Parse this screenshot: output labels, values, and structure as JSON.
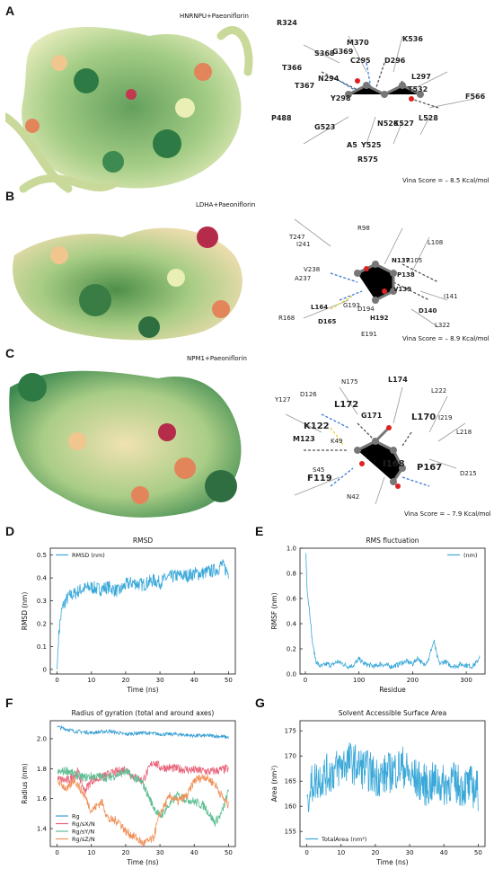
{
  "panels": {
    "A": {
      "letter": "A",
      "complex": "HNRNPU+Paeoniflorin",
      "vina": "Vina Score = – 8.5 Kcal/mol",
      "residues": [
        "R324",
        "M370",
        "K536",
        "G369",
        "S368",
        "C295",
        "D296",
        "T366",
        "N294",
        "L297",
        "T367",
        "T532",
        "Y298",
        "F566",
        "P488",
        "L528",
        "G523",
        "N526",
        "K527",
        "A5",
        "Y525",
        "R575"
      ]
    },
    "B": {
      "letter": "B",
      "complex": "LDHA+Paeoniflorin",
      "vina": "Vina Score = – 8.9 Kcal/mol",
      "residues": [
        "R98",
        "T247",
        "I241",
        "L108",
        "N137",
        "R105",
        "V238",
        "P138",
        "A237",
        "V139",
        "I141",
        "L164",
        "D140",
        "G193",
        "D194",
        "R168",
        "D165",
        "H192",
        "L322",
        "E191"
      ]
    },
    "C": {
      "letter": "C",
      "complex": "NPM1+Paeoniflorin",
      "vina": "Vina Score = – 7.9 Kcal/mol",
      "residues": [
        "N175",
        "L174",
        "L222",
        "D126",
        "Y127",
        "L172",
        "G171",
        "L170",
        "I219",
        "K122",
        "L218",
        "M123",
        "K49",
        "S45",
        "I168",
        "P167",
        "F119",
        "D215",
        "N42"
      ]
    }
  },
  "charts": {
    "D": {
      "letter": "D"
    },
    "E": {
      "letter": "E"
    },
    "F": {
      "letter": "F"
    },
    "G": {
      "letter": "G"
    }
  },
  "colors": {
    "series_blue": "#3aa8d8",
    "series_red": "#e8627a",
    "series_green": "#5fbf94",
    "series_orange": "#f0915a",
    "top_series": "#3a9fd4"
  },
  "chart_data": [
    {
      "id": "D",
      "type": "line",
      "title": "RMSD",
      "xlabel": "Time (ns)",
      "ylabel": "RMSD (nm)",
      "xlim": [
        -2,
        52
      ],
      "ylim": [
        -0.02,
        0.53
      ],
      "xticks": [
        0,
        10,
        20,
        30,
        40,
        50
      ],
      "yticks": [
        0,
        0.1,
        0.2,
        0.3,
        0.4,
        0.5
      ],
      "ytick_labels": [
        "0",
        "0.1",
        "0.2",
        "0.3",
        "0.4",
        "0.5"
      ],
      "legend": "top-left",
      "series": [
        {
          "name": "RMSD (nm)",
          "color": "#3aa8d8",
          "noise": 0.03,
          "x": [
            0,
            0.3,
            0.8,
            1.5,
            2.5,
            3.5,
            5,
            7,
            10,
            12,
            15,
            18,
            20,
            22,
            25,
            28,
            30,
            32,
            35,
            38,
            40,
            42,
            45,
            47,
            48,
            50
          ],
          "y": [
            0.0,
            0.12,
            0.2,
            0.27,
            0.3,
            0.32,
            0.33,
            0.35,
            0.36,
            0.35,
            0.36,
            0.34,
            0.37,
            0.38,
            0.37,
            0.39,
            0.38,
            0.4,
            0.41,
            0.41,
            0.42,
            0.42,
            0.43,
            0.44,
            0.46,
            0.42
          ]
        }
      ]
    },
    {
      "id": "E",
      "type": "line",
      "title": "RMS fluctuation",
      "xlabel": "Residue",
      "ylabel": "RMSF (nm)",
      "xlim": [
        -10,
        335
      ],
      "ylim": [
        0,
        1.0
      ],
      "xticks": [
        0,
        100,
        200,
        300
      ],
      "yticks": [
        0,
        0.2,
        0.4,
        0.6,
        0.8,
        1.0
      ],
      "ytick_labels": [
        "0.0",
        "0.2",
        "0.4",
        "0.6",
        "0.8",
        "1.0"
      ],
      "legend": "top-right",
      "series": [
        {
          "name": "(nm)",
          "color": "#3aa8d8",
          "noise": 0.02,
          "x": [
            1,
            3,
            5,
            8,
            10,
            12,
            15,
            18,
            20,
            25,
            30,
            40,
            50,
            60,
            70,
            80,
            90,
            100,
            110,
            120,
            130,
            140,
            150,
            160,
            170,
            180,
            190,
            200,
            210,
            220,
            230,
            235,
            240,
            245,
            250,
            260,
            270,
            280,
            290,
            300,
            310,
            320,
            325
          ],
          "y": [
            0.96,
            0.7,
            0.6,
            0.5,
            0.4,
            0.3,
            0.2,
            0.14,
            0.1,
            0.07,
            0.06,
            0.08,
            0.07,
            0.1,
            0.08,
            0.06,
            0.07,
            0.12,
            0.08,
            0.07,
            0.06,
            0.08,
            0.07,
            0.06,
            0.07,
            0.09,
            0.1,
            0.08,
            0.13,
            0.07,
            0.12,
            0.2,
            0.26,
            0.15,
            0.08,
            0.1,
            0.07,
            0.06,
            0.08,
            0.07,
            0.06,
            0.09,
            0.15
          ]
        }
      ]
    },
    {
      "id": "F",
      "type": "line",
      "title": "Radius of gyration (total and around axes)",
      "xlabel": "Time (ns)",
      "ylabel": "Radius (nm)",
      "xlim": [
        -2,
        52
      ],
      "ylim": [
        1.28,
        2.12
      ],
      "xticks": [
        0,
        10,
        20,
        30,
        40,
        50
      ],
      "yticks": [
        1.4,
        1.6,
        1.8,
        2.0
      ],
      "ytick_labels": [
        "1.4",
        "1.6",
        "1.8",
        "2.0"
      ],
      "legend": "bottom-left",
      "series": [
        {
          "name": "Rg",
          "color": "#3a9fd4",
          "noise": 0.012,
          "x": [
            0,
            5,
            10,
            15,
            20,
            25,
            30,
            35,
            40,
            45,
            50
          ],
          "y": [
            2.08,
            2.05,
            2.04,
            2.05,
            2.03,
            2.04,
            2.03,
            2.03,
            2.02,
            2.02,
            2.01
          ]
        },
        {
          "name": "Rg/sX/N",
          "color": "#e8627a",
          "noise": 0.03,
          "x": [
            0,
            3,
            6,
            8,
            10,
            15,
            20,
            22,
            25,
            28,
            30,
            35,
            40,
            45,
            50
          ],
          "y": [
            1.73,
            1.72,
            1.78,
            1.65,
            1.72,
            1.76,
            1.8,
            1.75,
            1.72,
            1.85,
            1.81,
            1.8,
            1.79,
            1.78,
            1.8
          ]
        },
        {
          "name": "Rg/sY/N",
          "color": "#5fbf94",
          "noise": 0.03,
          "x": [
            0,
            3,
            5,
            8,
            10,
            15,
            20,
            25,
            28,
            30,
            35,
            40,
            43,
            46,
            48,
            50
          ],
          "y": [
            1.77,
            1.79,
            1.76,
            1.74,
            1.75,
            1.74,
            1.78,
            1.7,
            1.55,
            1.48,
            1.62,
            1.58,
            1.55,
            1.44,
            1.5,
            1.65
          ]
        },
        {
          "name": "Rg/sZ/N",
          "color": "#f0915a",
          "noise": 0.03,
          "x": [
            0,
            3,
            5,
            8,
            10,
            13,
            15,
            18,
            20,
            23,
            25,
            28,
            30,
            33,
            35,
            38,
            40,
            43,
            46,
            48,
            50
          ],
          "y": [
            1.72,
            1.66,
            1.73,
            1.62,
            1.52,
            1.58,
            1.46,
            1.45,
            1.38,
            1.34,
            1.3,
            1.33,
            1.5,
            1.62,
            1.58,
            1.62,
            1.72,
            1.75,
            1.7,
            1.62,
            1.55
          ]
        }
      ]
    },
    {
      "id": "G",
      "type": "line",
      "title": "Solvent Accessible Surface Area",
      "xlabel": "Time (ns)",
      "ylabel": "Area (nm²)",
      "xlim": [
        -2,
        52
      ],
      "ylim": [
        152,
        177
      ],
      "xticks": [
        0,
        10,
        20,
        30,
        40,
        50
      ],
      "yticks": [
        155,
        160,
        165,
        170,
        175
      ],
      "ytick_labels": [
        "155",
        "160",
        "165",
        "170",
        "175"
      ],
      "legend": "bottom-left",
      "series": [
        {
          "name": "TotalArea (nm²)",
          "color": "#3aa8d8",
          "noise": 4.2,
          "x": [
            0,
            2,
            5,
            8,
            10,
            12,
            15,
            18,
            20,
            22,
            25,
            28,
            30,
            33,
            35,
            38,
            40,
            42,
            45,
            48,
            50
          ],
          "y": [
            162,
            165,
            166,
            167,
            168,
            169,
            168,
            167,
            166,
            166,
            167,
            168,
            166,
            165,
            164,
            165,
            164,
            165,
            164,
            164,
            163
          ]
        }
      ]
    }
  ]
}
